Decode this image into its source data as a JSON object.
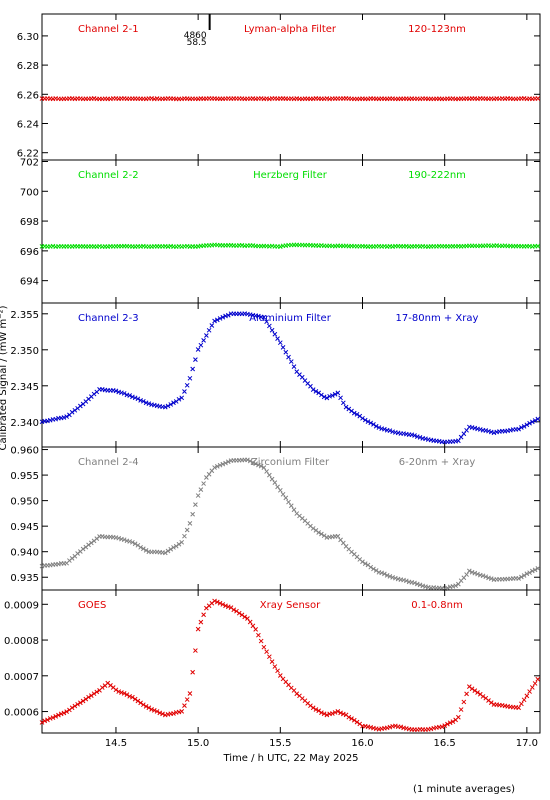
{
  "ylabel": "Calibrated Signal / (mW m⁻²)",
  "xlabel": "Time / h UTC, 22 May 2025",
  "footnote": "(1 minute averages)",
  "marker": {
    "x": 15.07,
    "text1": "4860",
    "text2": "58.5"
  },
  "chart_data": [
    {
      "type": "scatter",
      "channel": "Channel 2-1",
      "filter": "Lyman-alpha Filter",
      "band": "120-123nm",
      "color": "#e00000",
      "xlim": [
        14.05,
        17.08
      ],
      "ylim": [
        6.215,
        6.315
      ],
      "yticks": [
        "6.22",
        "6.24",
        "6.26",
        "6.28",
        "6.30"
      ],
      "x": [
        14.05,
        14.5,
        15.0,
        15.5,
        16.0,
        16.5,
        17.08
      ],
      "y": [
        6.257,
        6.257,
        6.257,
        6.257,
        6.257,
        6.257,
        6.257
      ]
    },
    {
      "type": "scatter",
      "channel": "Channel 2-2",
      "filter": "Herzberg Filter",
      "band": "190-222nm",
      "color": "#00dd00",
      "xlim": [
        14.05,
        17.08
      ],
      "ylim": [
        692.5,
        702.1
      ],
      "yticks": [
        "694",
        "696",
        "698",
        "700",
        "702"
      ],
      "x": [
        14.05,
        14.5,
        15.0,
        15.1,
        15.5,
        15.55,
        16.0,
        16.5,
        16.8,
        17.08
      ],
      "y": [
        696.3,
        696.3,
        696.3,
        696.4,
        696.3,
        696.4,
        696.3,
        696.3,
        696.35,
        696.3
      ]
    },
    {
      "type": "scatter",
      "channel": "Channel 2-3",
      "filter": "Aluminium Filter",
      "band": "17-80nm + Xray",
      "color": "#0000cc",
      "xlim": [
        14.05,
        17.08
      ],
      "ylim": [
        2.3365,
        2.3565
      ],
      "yticks": [
        "2.340",
        "2.345",
        "2.350",
        "2.355"
      ],
      "x": [
        14.05,
        14.2,
        14.3,
        14.4,
        14.5,
        14.6,
        14.7,
        14.8,
        14.9,
        14.95,
        15.0,
        15.05,
        15.1,
        15.2,
        15.3,
        15.4,
        15.5,
        15.6,
        15.7,
        15.78,
        15.85,
        15.9,
        16.0,
        16.1,
        16.2,
        16.3,
        16.4,
        16.5,
        16.58,
        16.65,
        16.8,
        16.95,
        17.08
      ],
      "y": [
        2.34,
        2.3407,
        2.3425,
        2.3445,
        2.3443,
        2.3435,
        2.3425,
        2.342,
        2.3433,
        2.346,
        2.35,
        2.352,
        2.354,
        2.355,
        2.355,
        2.3545,
        2.351,
        2.347,
        2.3445,
        2.3433,
        2.344,
        2.342,
        2.3405,
        2.3392,
        2.3385,
        2.3382,
        2.3375,
        2.3372,
        2.3373,
        2.3393,
        2.3385,
        2.339,
        2.3405
      ]
    },
    {
      "type": "scatter",
      "channel": "Channel 2-4",
      "filter": "Zirconium Filter",
      "band": "6-20nm + Xray",
      "color": "#808080",
      "xlim": [
        14.05,
        17.08
      ],
      "ylim": [
        0.9325,
        0.9605
      ],
      "yticks": [
        "0.935",
        "0.940",
        "0.945",
        "0.950",
        "0.955",
        "0.960"
      ],
      "x": [
        14.05,
        14.2,
        14.3,
        14.4,
        14.5,
        14.6,
        14.7,
        14.8,
        14.9,
        14.95,
        15.0,
        15.05,
        15.1,
        15.2,
        15.3,
        15.4,
        15.5,
        15.6,
        15.7,
        15.78,
        15.85,
        15.9,
        16.0,
        16.1,
        16.2,
        16.3,
        16.4,
        16.5,
        16.58,
        16.65,
        16.8,
        16.95,
        17.08
      ],
      "y": [
        0.9372,
        0.9378,
        0.9405,
        0.943,
        0.9428,
        0.9418,
        0.94,
        0.9398,
        0.9418,
        0.9455,
        0.951,
        0.9545,
        0.9565,
        0.9578,
        0.958,
        0.9565,
        0.952,
        0.9475,
        0.9445,
        0.9428,
        0.943,
        0.941,
        0.938,
        0.936,
        0.9348,
        0.934,
        0.933,
        0.9328,
        0.9335,
        0.9362,
        0.9345,
        0.9348,
        0.937
      ]
    },
    {
      "type": "scatter",
      "channel": "GOES",
      "filter": "Xray Sensor",
      "band": "0.1-0.8nm",
      "color": "#e00000",
      "xlim": [
        14.05,
        17.08
      ],
      "ylim": [
        0.00054,
        0.00094
      ],
      "yticks": [
        "0.0006",
        "0.0007",
        "0.0008",
        "0.0009"
      ],
      "x": [
        14.05,
        14.2,
        14.3,
        14.4,
        14.45,
        14.5,
        14.6,
        14.7,
        14.8,
        14.9,
        14.95,
        15.0,
        15.05,
        15.1,
        15.2,
        15.3,
        15.35,
        15.4,
        15.5,
        15.6,
        15.7,
        15.78,
        15.85,
        15.9,
        16.0,
        16.1,
        16.2,
        16.3,
        16.4,
        16.5,
        16.58,
        16.65,
        16.8,
        16.95,
        17.08
      ],
      "y": [
        0.00057,
        0.0006,
        0.00063,
        0.00066,
        0.00068,
        0.00066,
        0.00064,
        0.00061,
        0.00059,
        0.0006,
        0.00065,
        0.00083,
        0.00089,
        0.00091,
        0.00089,
        0.00086,
        0.00083,
        0.00078,
        0.0007,
        0.00065,
        0.00061,
        0.00059,
        0.0006,
        0.00059,
        0.00056,
        0.00055,
        0.00056,
        0.00055,
        0.00055,
        0.00056,
        0.00058,
        0.00067,
        0.00062,
        0.00061,
        0.0007
      ]
    }
  ],
  "xticks": [
    "14.5",
    "15.0",
    "15.5",
    "16.0",
    "16.5",
    "17.0"
  ]
}
